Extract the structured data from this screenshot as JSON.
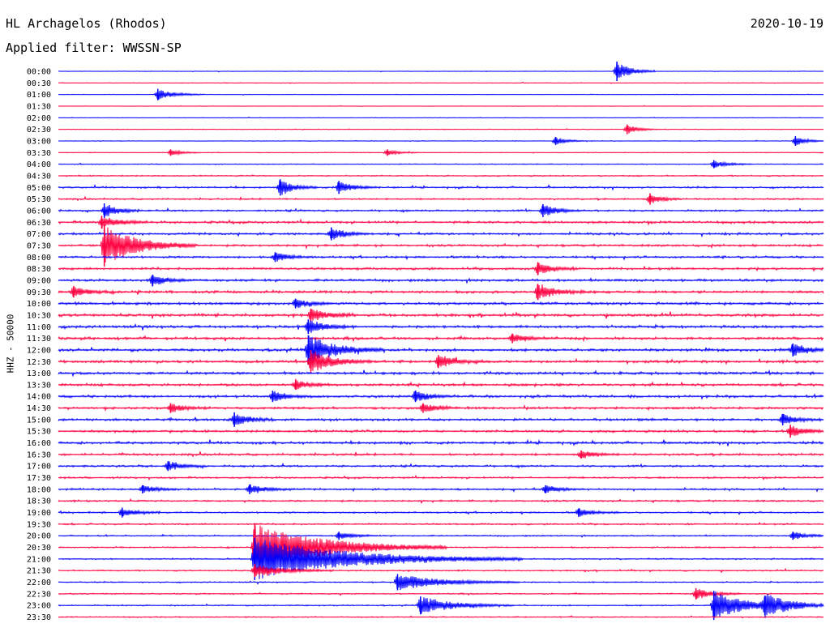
{
  "header": {
    "station": "HL Archagelos (Rhodos)",
    "date": "2020-10-19",
    "filter": "Applied filter: WWSSN-SP"
  },
  "chart_data": {
    "type": "line",
    "subtype": "helicorder",
    "ylabel": "HHZ - 50000",
    "trace_colors": [
      "#0000ff",
      "#ff0040"
    ],
    "rows": [
      "00:00",
      "00:30",
      "01:00",
      "01:30",
      "02:00",
      "02:30",
      "03:00",
      "03:30",
      "04:00",
      "04:30",
      "05:00",
      "05:30",
      "06:00",
      "06:30",
      "07:00",
      "07:30",
      "08:00",
      "08:30",
      "09:00",
      "09:30",
      "10:00",
      "10:30",
      "11:00",
      "11:30",
      "12:00",
      "12:30",
      "13:00",
      "13:30",
      "14:00",
      "14:30",
      "15:00",
      "15:30",
      "16:00",
      "16:30",
      "17:00",
      "17:30",
      "18:00",
      "18:30",
      "19:00",
      "19:30",
      "20:00",
      "20:30",
      "21:00",
      "21:30",
      "22:00",
      "22:30",
      "23:00",
      "23:30"
    ],
    "row_minutes": 30,
    "x_minutes_range": [
      0,
      30
    ],
    "noise_level": [
      0.12,
      0.15,
      0.12,
      0.1,
      0.12,
      0.14,
      0.16,
      0.18,
      0.2,
      0.3,
      0.38,
      0.36,
      0.42,
      0.55,
      0.5,
      0.5,
      0.48,
      0.52,
      0.58,
      0.6,
      0.62,
      0.62,
      0.6,
      0.6,
      0.62,
      0.62,
      0.6,
      0.58,
      0.58,
      0.56,
      0.55,
      0.55,
      0.55,
      0.5,
      0.45,
      0.42,
      0.42,
      0.4,
      0.38,
      0.36,
      0.32,
      0.32,
      0.32,
      0.3,
      0.28,
      0.28,
      0.28,
      0.26
    ],
    "events": [
      {
        "row": 0,
        "minute": 21.9,
        "amplitude": 12,
        "duration": 0.5
      },
      {
        "row": 2,
        "minute": 3.9,
        "amplitude": 7,
        "duration": 0.6
      },
      {
        "row": 5,
        "minute": 22.3,
        "amplitude": 6,
        "duration": 0.4
      },
      {
        "row": 6,
        "minute": 19.5,
        "amplitude": 5,
        "duration": 0.4
      },
      {
        "row": 6,
        "minute": 28.9,
        "amplitude": 6,
        "duration": 0.4
      },
      {
        "row": 7,
        "minute": 4.4,
        "amplitude": 4,
        "duration": 0.4
      },
      {
        "row": 7,
        "minute": 12.9,
        "amplitude": 4,
        "duration": 0.4
      },
      {
        "row": 8,
        "minute": 25.7,
        "amplitude": 5,
        "duration": 0.5
      },
      {
        "row": 10,
        "minute": 8.7,
        "amplitude": 10,
        "duration": 0.5
      },
      {
        "row": 10,
        "minute": 11.0,
        "amplitude": 8,
        "duration": 0.5
      },
      {
        "row": 11,
        "minute": 23.2,
        "amplitude": 7,
        "duration": 0.4
      },
      {
        "row": 12,
        "minute": 1.8,
        "amplitude": 9,
        "duration": 0.5
      },
      {
        "row": 12,
        "minute": 19.0,
        "amplitude": 8,
        "duration": 0.5
      },
      {
        "row": 13,
        "minute": 1.7,
        "amplitude": 8,
        "duration": 0.6
      },
      {
        "row": 14,
        "minute": 10.7,
        "amplitude": 8,
        "duration": 0.5
      },
      {
        "row": 15,
        "minute": 1.8,
        "amplitude": 26,
        "duration": 1.2
      },
      {
        "row": 16,
        "minute": 8.5,
        "amplitude": 6,
        "duration": 0.5
      },
      {
        "row": 17,
        "minute": 18.8,
        "amplitude": 8,
        "duration": 0.5
      },
      {
        "row": 18,
        "minute": 3.7,
        "amplitude": 7,
        "duration": 0.5
      },
      {
        "row": 19,
        "minute": 0.6,
        "amplitude": 7,
        "duration": 0.5
      },
      {
        "row": 19,
        "minute": 18.8,
        "amplitude": 10,
        "duration": 0.6
      },
      {
        "row": 20,
        "minute": 9.3,
        "amplitude": 6,
        "duration": 0.5
      },
      {
        "row": 21,
        "minute": 9.9,
        "amplitude": 8,
        "duration": 0.6
      },
      {
        "row": 22,
        "minute": 9.8,
        "amplitude": 9,
        "duration": 0.6
      },
      {
        "row": 23,
        "minute": 17.8,
        "amplitude": 6,
        "duration": 0.5
      },
      {
        "row": 24,
        "minute": 9.8,
        "amplitude": 18,
        "duration": 1.0
      },
      {
        "row": 24,
        "minute": 28.8,
        "amplitude": 8,
        "duration": 0.5
      },
      {
        "row": 25,
        "minute": 9.9,
        "amplitude": 14,
        "duration": 0.8
      },
      {
        "row": 25,
        "minute": 14.9,
        "amplitude": 8,
        "duration": 0.6
      },
      {
        "row": 27,
        "minute": 9.3,
        "amplitude": 6,
        "duration": 0.5
      },
      {
        "row": 28,
        "minute": 8.4,
        "amplitude": 7,
        "duration": 0.5
      },
      {
        "row": 28,
        "minute": 14.0,
        "amplitude": 7,
        "duration": 0.5
      },
      {
        "row": 29,
        "minute": 4.4,
        "amplitude": 6,
        "duration": 0.5
      },
      {
        "row": 29,
        "minute": 14.3,
        "amplitude": 6,
        "duration": 0.5
      },
      {
        "row": 30,
        "minute": 6.9,
        "amplitude": 9,
        "duration": 0.5
      },
      {
        "row": 30,
        "minute": 28.4,
        "amplitude": 7,
        "duration": 0.5
      },
      {
        "row": 31,
        "minute": 28.7,
        "amplitude": 8,
        "duration": 0.5
      },
      {
        "row": 33,
        "minute": 20.5,
        "amplitude": 5,
        "duration": 0.5
      },
      {
        "row": 34,
        "minute": 4.3,
        "amplitude": 6,
        "duration": 0.5
      },
      {
        "row": 36,
        "minute": 3.3,
        "amplitude": 5,
        "duration": 0.5
      },
      {
        "row": 36,
        "minute": 7.5,
        "amplitude": 6,
        "duration": 0.6
      },
      {
        "row": 36,
        "minute": 19.1,
        "amplitude": 5,
        "duration": 0.5
      },
      {
        "row": 38,
        "minute": 2.5,
        "amplitude": 6,
        "duration": 0.5
      },
      {
        "row": 38,
        "minute": 20.4,
        "amplitude": 5,
        "duration": 0.5
      },
      {
        "row": 40,
        "minute": 11.0,
        "amplitude": 5,
        "duration": 0.5
      },
      {
        "row": 40,
        "minute": 28.8,
        "amplitude": 5,
        "duration": 0.5
      },
      {
        "row": 41,
        "minute": 7.7,
        "amplitude": 30,
        "duration": 2.5
      },
      {
        "row": 42,
        "minute": 7.7,
        "amplitude": 26,
        "duration": 3.5
      },
      {
        "row": 43,
        "minute": 7.7,
        "amplitude": 8,
        "duration": 1.0
      },
      {
        "row": 44,
        "minute": 13.3,
        "amplitude": 10,
        "duration": 1.6
      },
      {
        "row": 45,
        "minute": 25.0,
        "amplitude": 7,
        "duration": 0.6
      },
      {
        "row": 46,
        "minute": 14.2,
        "amplitude": 11,
        "duration": 1.2
      },
      {
        "row": 46,
        "minute": 25.7,
        "amplitude": 18,
        "duration": 1.2
      },
      {
        "row": 46,
        "minute": 27.7,
        "amplitude": 12,
        "duration": 1.0
      }
    ]
  }
}
